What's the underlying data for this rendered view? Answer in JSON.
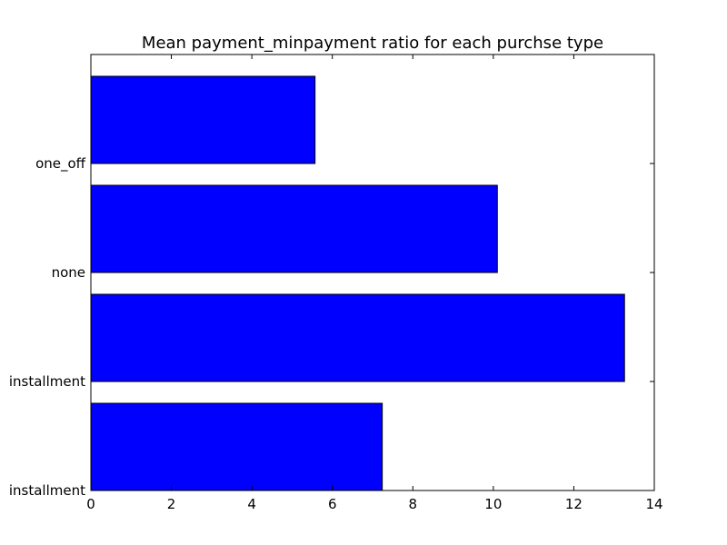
{
  "chart_data": {
    "type": "bar",
    "orientation": "horizontal",
    "title": "Mean payment_minpayment ratio for each purchse type",
    "xlabel": "",
    "ylabel": "",
    "categories": [
      "installment",
      "installment",
      "none",
      "one_off"
    ],
    "values": [
      7.24,
      13.26,
      10.1,
      5.57
    ],
    "xlim": [
      0,
      14
    ],
    "xticks": [
      0,
      2,
      4,
      6,
      8,
      10,
      12,
      14
    ],
    "grid": false,
    "legend": "none",
    "bar_color": "#0000ff",
    "edge_color": "#000000"
  }
}
